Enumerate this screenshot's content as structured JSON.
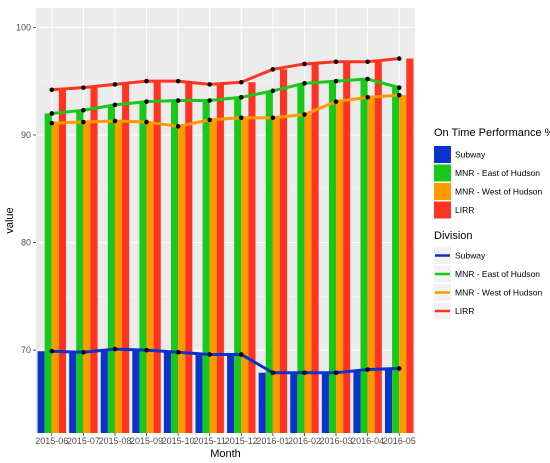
{
  "chart_data": {
    "type": "bar",
    "title": "",
    "xlabel": "Month",
    "ylabel": "value",
    "ylim": [
      62.3,
      101.8
    ],
    "yticks": [
      70,
      80,
      90,
      100
    ],
    "grid": true,
    "legend_placement": "right",
    "categories": [
      "2015-06",
      "2015-07",
      "2015-08",
      "2015-09",
      "2015-10",
      "2015-11",
      "2015-12",
      "2016-01",
      "2016-02",
      "2016-03",
      "2016-04",
      "2016-05"
    ],
    "bar_legend_title": "On Time Performance %",
    "line_legend_title": "Division",
    "series": [
      {
        "name": "Subway",
        "color": "#0b33cc",
        "values": [
          69.9,
          69.8,
          70.1,
          70.0,
          69.8,
          69.6,
          69.6,
          67.9,
          67.9,
          67.9,
          68.2,
          68.3
        ]
      },
      {
        "name": "MNR - East of Hudson",
        "color": "#19c819",
        "values": [
          92.0,
          92.3,
          92.8,
          93.1,
          93.2,
          93.2,
          93.5,
          94.1,
          94.8,
          95.0,
          95.2,
          94.4
        ]
      },
      {
        "name": "MNR - West of Hudson",
        "color": "#ff9900",
        "values": [
          91.1,
          91.2,
          91.3,
          91.2,
          90.8,
          91.4,
          91.6,
          91.6,
          91.9,
          93.1,
          93.5,
          93.7
        ]
      },
      {
        "name": "LIRR",
        "color": "#ff3322",
        "values": [
          94.2,
          94.4,
          94.7,
          95.0,
          95.0,
          94.7,
          94.9,
          96.1,
          96.6,
          96.8,
          96.8,
          97.1
        ]
      }
    ]
  }
}
